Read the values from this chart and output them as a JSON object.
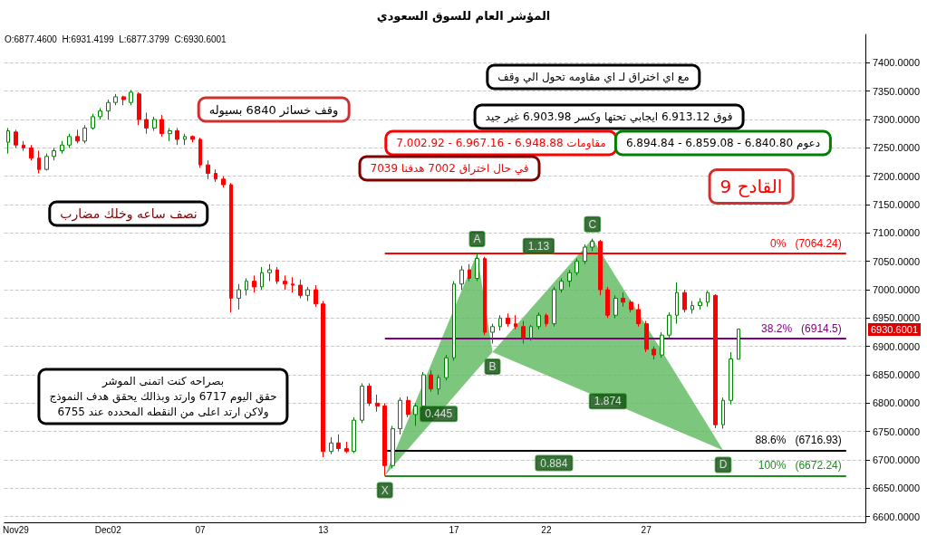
{
  "chart_data": {
    "type": "candlestick",
    "title": "المؤشر العام للسوق السعودي",
    "categories": [
      null,
      "Nov29",
      null,
      null,
      null,
      null,
      null,
      null,
      null,
      null,
      null,
      null,
      null,
      "Dec02",
      null,
      null,
      null,
      null,
      null,
      null,
      null,
      null,
      null,
      null,
      null,
      "07",
      null,
      null,
      null,
      null,
      null,
      null,
      null,
      null,
      null,
      null,
      null,
      null,
      null,
      null,
      null,
      "13",
      null,
      null,
      null,
      null,
      null,
      null,
      null,
      null,
      null,
      null,
      null,
      null,
      null,
      null,
      null,
      null,
      "17",
      null,
      null,
      null,
      null,
      null,
      null,
      null,
      null,
      null,
      null,
      null,
      "22",
      null,
      null,
      null,
      null,
      null,
      null,
      null,
      null,
      null,
      null,
      null,
      null,
      "27",
      null,
      null,
      null,
      null,
      null,
      null,
      null,
      null,
      null,
      null,
      null,
      null,
      null,
      null,
      null,
      null,
      null,
      null,
      null,
      null,
      null,
      null,
      null,
      null,
      null,
      null,
      null,
      null
    ],
    "ohlc": [
      [
        7260,
        7285,
        7240,
        7280
      ],
      [
        7278,
        7282,
        7250,
        7255
      ],
      [
        7255,
        7262,
        7245,
        7250
      ],
      [
        7250,
        7255,
        7228,
        7232
      ],
      [
        7232,
        7245,
        7205,
        7212
      ],
      [
        7212,
        7240,
        7210,
        7235
      ],
      [
        7235,
        7250,
        7228,
        7245
      ],
      [
        7245,
        7262,
        7240,
        7255
      ],
      [
        7255,
        7275,
        7250,
        7270
      ],
      [
        7270,
        7282,
        7258,
        7262
      ],
      [
        7262,
        7290,
        7258,
        7285
      ],
      [
        7285,
        7310,
        7282,
        7305
      ],
      [
        7305,
        7320,
        7300,
        7315
      ],
      [
        7315,
        7335,
        7300,
        7330
      ],
      [
        7330,
        7345,
        7325,
        7340
      ],
      [
        7340,
        7342,
        7325,
        7335
      ],
      [
        7330,
        7352,
        7325,
        7348
      ],
      [
        7345,
        7348,
        7290,
        7300
      ],
      [
        7300,
        7312,
        7275,
        7285
      ],
      [
        7285,
        7305,
        7280,
        7300
      ],
      [
        7300,
        7308,
        7270,
        7275
      ],
      [
        7275,
        7285,
        7262,
        7280
      ],
      [
        7280,
        7285,
        7255,
        7265
      ],
      [
        7265,
        7275,
        7255,
        7270
      ],
      [
        7270,
        7272,
        7260,
        7265
      ],
      [
        7265,
        7268,
        7215,
        7220
      ],
      [
        7220,
        7228,
        7195,
        7205
      ],
      [
        7205,
        7212,
        7190,
        7195
      ],
      [
        7195,
        7200,
        7180,
        7185
      ],
      [
        7185,
        7188,
        6960,
        6985
      ],
      [
        6985,
        7010,
        6965,
        7000
      ],
      [
        7000,
        7020,
        6990,
        7015
      ],
      [
        7015,
        7025,
        6995,
        7005
      ],
      [
        7005,
        7040,
        7000,
        7030
      ],
      [
        7030,
        7045,
        7015,
        7035
      ],
      [
        7035,
        7040,
        7010,
        7015
      ],
      [
        7015,
        7025,
        7000,
        7010
      ],
      [
        7010,
        7022,
        6995,
        7008
      ],
      [
        7008,
        7018,
        6985,
        6990
      ],
      [
        6990,
        7005,
        6980,
        7000
      ],
      [
        7000,
        7008,
        6970,
        6975
      ],
      [
        6975,
        6980,
        6705,
        6715
      ],
      [
        6715,
        6740,
        6710,
        6730
      ],
      [
        6730,
        6745,
        6715,
        6720
      ],
      [
        6720,
        6732,
        6712,
        6715
      ],
      [
        6715,
        6775,
        6712,
        6770
      ],
      [
        6770,
        6835,
        6765,
        6830
      ],
      [
        6830,
        6835,
        6795,
        6800
      ],
      [
        6800,
        6815,
        6785,
        6795
      ],
      [
        6795,
        6800,
        6672,
        6690
      ],
      [
        6690,
        6760,
        6685,
        6755
      ],
      [
        6755,
        6810,
        6745,
        6805
      ],
      [
        6805,
        6812,
        6775,
        6780
      ],
      [
        6780,
        6800,
        6760,
        6795
      ],
      [
        6795,
        6855,
        6790,
        6850
      ],
      [
        6850,
        6858,
        6820,
        6825
      ],
      [
        6825,
        6850,
        6815,
        6845
      ],
      [
        6845,
        6885,
        6840,
        6880
      ],
      [
        6880,
        7015,
        6875,
        7010
      ],
      [
        7010,
        7042,
        7000,
        7035
      ],
      [
        7035,
        7045,
        7015,
        7020
      ],
      [
        7020,
        7064,
        7015,
        7055
      ],
      [
        7055,
        7058,
        6920,
        6925
      ],
      [
        6925,
        6940,
        6905,
        6935
      ],
      [
        6935,
        6955,
        6928,
        6950
      ],
      [
        6950,
        6958,
        6935,
        6940
      ],
      [
        6940,
        6955,
        6930,
        6935
      ],
      [
        6935,
        6945,
        6905,
        6915
      ],
      [
        6915,
        6938,
        6910,
        6935
      ],
      [
        6935,
        6960,
        6930,
        6955
      ],
      [
        6955,
        6958,
        6935,
        6940
      ],
      [
        6940,
        7005,
        6935,
        7000
      ],
      [
        7000,
        7020,
        6995,
        7015
      ],
      [
        7015,
        7035,
        7005,
        7030
      ],
      [
        7030,
        7055,
        7025,
        7050
      ],
      [
        7050,
        7080,
        7045,
        7075
      ],
      [
        7075,
        7090,
        7068,
        7085
      ],
      [
        7085,
        7088,
        6990,
        7000
      ],
      [
        7000,
        7005,
        6950,
        6955
      ],
      [
        6955,
        6990,
        6950,
        6985
      ],
      [
        6985,
        6995,
        6970,
        6978
      ],
      [
        6978,
        6982,
        6960,
        6965
      ],
      [
        6965,
        6975,
        6935,
        6940
      ],
      [
        6940,
        6945,
        6890,
        6895
      ],
      [
        6895,
        6900,
        6877,
        6885
      ],
      [
        6885,
        6925,
        6880,
        6920
      ],
      [
        6920,
        6960,
        6915,
        6955
      ],
      [
        6955,
        7013,
        6940,
        6995
      ],
      [
        6995,
        7000,
        6960,
        6965
      ],
      [
        6965,
        6980,
        6958,
        6972
      ],
      [
        6972,
        6985,
        6965,
        6978
      ],
      [
        6978,
        6998,
        6970,
        6995
      ],
      [
        6990,
        6992,
        6756,
        6762
      ],
      [
        6762,
        6810,
        6755,
        6805
      ],
      [
        6805,
        6890,
        6798,
        6878
      ],
      [
        6877.46,
        6931.42,
        6877.38,
        6930.6
      ],
      null,
      null,
      null,
      null,
      null,
      null,
      null,
      null,
      null,
      null,
      null,
      null,
      null,
      null,
      null,
      null
    ],
    "series": [
      {
        "type": "area",
        "color": "#5cb85c",
        "values": [
          null,
          null,
          null,
          null,
          null,
          null,
          null,
          null,
          null,
          null,
          null,
          null,
          null,
          null,
          null,
          null,
          null,
          null,
          null,
          null,
          null,
          null,
          null,
          null,
          null,
          null,
          null,
          null,
          null,
          null,
          null,
          null,
          null,
          null,
          null,
          null,
          null,
          null,
          null,
          null,
          null,
          null,
          null,
          null,
          null,
          null,
          null,
          null,
          null,
          6672,
          null,
          null,
          null,
          null,
          null,
          null,
          null,
          null,
          null,
          null,
          null,
          7064,
          null,
          6890,
          null,
          null,
          null,
          null,
          null,
          null,
          null,
          null,
          null,
          null,
          null,
          null,
          7090,
          null,
          null,
          null,
          null,
          null,
          null,
          null,
          null,
          null,
          null,
          null,
          null,
          null,
          null,
          null,
          null,
          6717,
          null,
          null,
          null,
          null,
          null,
          null,
          null,
          null,
          null,
          null,
          null,
          null,
          null,
          null,
          null,
          null,
          null,
          null
        ],
        "value_labels": [
          null,
          null,
          null,
          null,
          null,
          null,
          null,
          null,
          null,
          null,
          null,
          null,
          null,
          null,
          null,
          null,
          null,
          null,
          null,
          null,
          null,
          null,
          null,
          null,
          null,
          null,
          null,
          null,
          null,
          null,
          null,
          null,
          null,
          null,
          null,
          null,
          null,
          null,
          null,
          null,
          null,
          null,
          null,
          null,
          null,
          null,
          null,
          null,
          null,
          "X",
          null,
          null,
          null,
          null,
          null,
          null,
          null,
          null,
          null,
          null,
          null,
          "A",
          null,
          "B",
          null,
          null,
          null,
          null,
          null,
          null,
          null,
          null,
          null,
          null,
          null,
          null,
          "C",
          null,
          null,
          null,
          null,
          null,
          null,
          null,
          null,
          null,
          null,
          null,
          null,
          null,
          null,
          null,
          null,
          "D",
          null,
          null,
          null,
          null,
          null,
          null,
          null,
          null,
          null,
          null,
          null,
          null,
          null,
          null,
          null,
          null,
          null,
          null
        ]
      }
    ],
    "ylim": [
      6590,
      7450
    ],
    "yticks": [
      {
        "value": 6600,
        "label": "6600.0000"
      },
      {
        "value": 6650,
        "label": "6650.0000"
      },
      {
        "value": 6700,
        "label": "6700.0000"
      },
      {
        "value": 6750,
        "label": "6750.0000"
      },
      {
        "value": 6800,
        "label": "6800.0000"
      },
      {
        "value": 6850,
        "label": "6850.0000"
      },
      {
        "value": 6900,
        "label": "6900.0000"
      },
      {
        "value": 6950,
        "label": "6950.0000"
      },
      {
        "value": 7000,
        "label": "7000.0000"
      },
      {
        "value": 7050,
        "label": "7050.0000"
      },
      {
        "value": 7100,
        "label": "7100.0000"
      },
      {
        "value": 7150,
        "label": "7150.0000"
      },
      {
        "value": 7200,
        "label": "7200.0000"
      },
      {
        "value": 7250,
        "label": "7250.0000"
      },
      {
        "value": 7300,
        "label": "7300.0000"
      },
      {
        "value": 7350,
        "label": "7350.0000"
      },
      {
        "value": 7400,
        "label": "7400.0000"
      }
    ],
    "grid": "y",
    "ref_lines": [
      {
        "axis": "y",
        "value": 7064.24,
        "label": "0%   (7064.24)",
        "color": "#ff0000"
      },
      {
        "axis": "y",
        "value": 6914.5,
        "label": "38.2%   (6914.5)",
        "color": "#800080"
      },
      {
        "axis": "y",
        "value": 6716.93,
        "label": "88.6%   (6716.93)",
        "color": "#000000"
      },
      {
        "axis": "y",
        "value": 6672.24,
        "label": "100%   (6672.24)",
        "color": "#228b22"
      }
    ],
    "annotations": [
      "0.445",
      "1.13",
      "1.874",
      "0.884",
      "O:6877.4600  H:6931.4199  L:6877.3799  C:6930.6001",
      "6930.6001",
      "مع اي اختراق لـ اي مقاومه تحول الي وقف",
      "وقف خسائر 6840 بسيوله",
      "فوق 6.913.12 ايجابي تحتها وكسر 6.903.98 غير جيد",
      "مقاومات 6.948.88 - 6.967.16 - 7.002.92",
      "دعوم 6.840.80 - 6.859.08 - 6.894.84",
      "في حال اختراق 7002 هدفنا 7039",
      "القادح 9",
      "نصف ساعه وخلك مضارب",
      "بصراحه كنت اتمنى الموشر\nحقق اليوم 6717 وارتد وبذالك يحقق هدف النموذج\nولاكن ارتد اعلى من النقطه المحدده عند 6755"
    ]
  }
}
